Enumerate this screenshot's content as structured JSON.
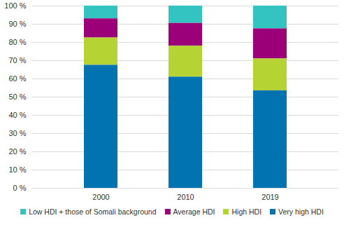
{
  "chart_data": {
    "type": "bar",
    "stacked": true,
    "grid": true,
    "legend": "bottom",
    "categories": [
      "2000",
      "2010",
      "2019"
    ],
    "series": [
      {
        "name": "Low HDI + those of Somali background",
        "color": "#33c3c0",
        "values": [
          7,
          9.5,
          12.5
        ]
      },
      {
        "name": "Average HDI",
        "color": "#9c0078",
        "values": [
          10.5,
          12.5,
          16.5
        ]
      },
      {
        "name": "High HDI",
        "color": "#b6d334",
        "values": [
          15,
          17,
          17.5
        ]
      },
      {
        "name": "Very high HDI",
        "color": "#0073b0",
        "values": [
          67.5,
          61,
          53.5
        ]
      }
    ],
    "ylim": [
      0,
      100
    ],
    "yticks": [
      {
        "value": 0,
        "label": "0 %"
      },
      {
        "value": 10,
        "label": "10 %"
      },
      {
        "value": 20,
        "label": "20 %"
      },
      {
        "value": 30,
        "label": "30 %"
      },
      {
        "value": 40,
        "label": "40 %"
      },
      {
        "value": 50,
        "label": "50 %"
      },
      {
        "value": 60,
        "label": "60 %"
      },
      {
        "value": 70,
        "label": "70 %"
      },
      {
        "value": 80,
        "label": "80 %"
      },
      {
        "value": 90,
        "label": "90 %"
      },
      {
        "value": 100,
        "label": "100 %"
      }
    ]
  }
}
